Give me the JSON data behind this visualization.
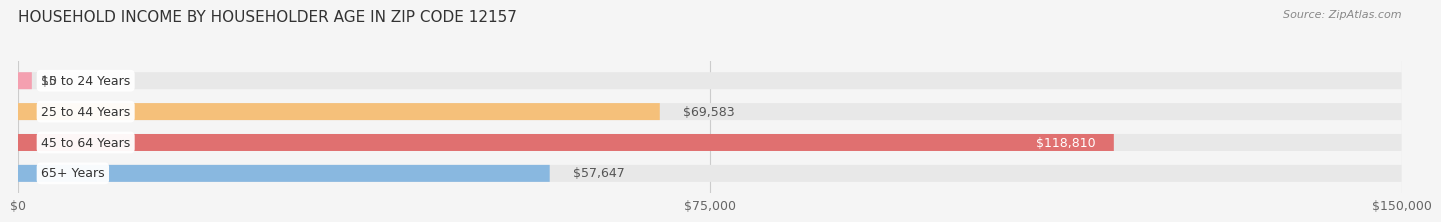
{
  "title": "HOUSEHOLD INCOME BY HOUSEHOLDER AGE IN ZIP CODE 12157",
  "source": "Source: ZipAtlas.com",
  "categories": [
    "15 to 24 Years",
    "25 to 44 Years",
    "45 to 64 Years",
    "65+ Years"
  ],
  "values": [
    0,
    69583,
    118810,
    57647
  ],
  "bar_colors": [
    "#f4a0b0",
    "#f5c07a",
    "#e07070",
    "#89b8e0"
  ],
  "label_colors": [
    "#555555",
    "#555555",
    "#ffffff",
    "#555555"
  ],
  "bar_height": 0.55,
  "xlim": [
    0,
    150000
  ],
  "xticks": [
    0,
    75000,
    150000
  ],
  "xtick_labels": [
    "$0",
    "$75,000",
    "$150,000"
  ],
  "bg_color": "#f5f5f5",
  "bar_bg_color": "#e8e8e8",
  "title_fontsize": 11,
  "label_fontsize": 9,
  "value_labels": [
    "$0",
    "$69,583",
    "$118,810",
    "$57,647"
  ],
  "source_fontsize": 8
}
